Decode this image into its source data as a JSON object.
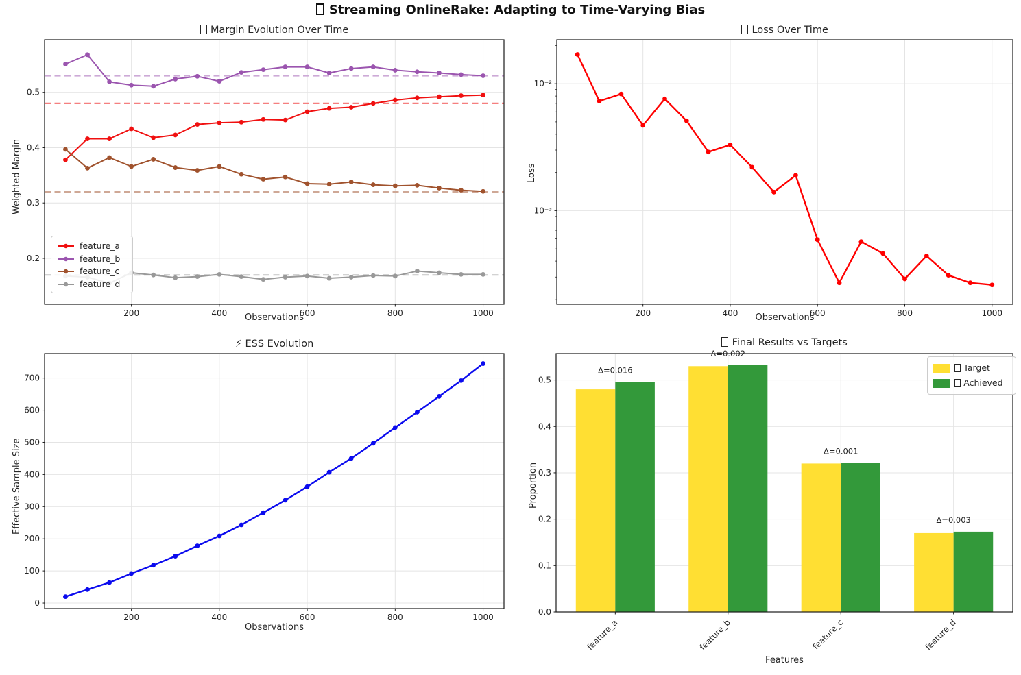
{
  "figure": {
    "title": "Streaming OnlineRake: Adapting to Time-Varying Bias",
    "title_icon": "missing-glyph"
  },
  "chart_data": [
    {
      "type": "line",
      "title": "Margin Evolution Over Time",
      "title_icon": "missing-glyph",
      "xlabel": "Observations",
      "ylabel": "Weighted Margin",
      "x": [
        50,
        100,
        150,
        200,
        250,
        300,
        350,
        400,
        450,
        500,
        550,
        600,
        650,
        700,
        750,
        800,
        850,
        900,
        950,
        1000
      ],
      "series": [
        {
          "name": "feature_a",
          "color": "#f01010",
          "target": 0.48,
          "target_color": "#f57f7f",
          "values": [
            0.378,
            0.416,
            0.416,
            0.434,
            0.418,
            0.423,
            0.442,
            0.445,
            0.446,
            0.451,
            0.45,
            0.465,
            0.471,
            0.473,
            0.48,
            0.486,
            0.49,
            0.492,
            0.494,
            0.495
          ]
        },
        {
          "name": "feature_b",
          "color": "#9b55af",
          "target": 0.53,
          "target_color": "#cdaad7",
          "values": [
            0.551,
            0.568,
            0.519,
            0.513,
            0.511,
            0.524,
            0.529,
            0.52,
            0.536,
            0.541,
            0.546,
            0.546,
            0.535,
            0.543,
            0.546,
            0.54,
            0.537,
            0.535,
            0.532,
            0.53
          ]
        },
        {
          "name": "feature_c",
          "color": "#a0522d",
          "target": 0.32,
          "target_color": "#cfa896",
          "values": [
            0.397,
            0.363,
            0.382,
            0.366,
            0.379,
            0.364,
            0.359,
            0.366,
            0.352,
            0.343,
            0.347,
            0.335,
            0.334,
            0.338,
            0.333,
            0.331,
            0.332,
            0.327,
            0.323,
            0.321
          ]
        },
        {
          "name": "feature_d",
          "color": "#999999",
          "target": 0.17,
          "target_color": "#cccccc",
          "values": [
            0.168,
            0.166,
            0.155,
            0.174,
            0.17,
            0.165,
            0.167,
            0.171,
            0.167,
            0.162,
            0.166,
            0.168,
            0.164,
            0.166,
            0.169,
            0.168,
            0.177,
            0.174,
            0.171,
            0.171
          ]
        }
      ],
      "xticks": [
        200,
        400,
        600,
        800,
        1000
      ],
      "xtick_labels": [
        "200",
        "400",
        "600",
        "800",
        "1000"
      ],
      "yticks": [
        0.2,
        0.3,
        0.4,
        0.5
      ],
      "ytick_labels": [
        "0.2",
        "0.3",
        "0.4",
        "0.5"
      ],
      "xlim": [
        2.5,
        1047.5
      ],
      "ylim": [
        0.117,
        0.595
      ],
      "grid": true,
      "legend_position": "lower-left",
      "line_width": 2
    },
    {
      "type": "line",
      "title": "Loss Over Time",
      "title_icon": "missing-glyph",
      "xlabel": "Observations",
      "ylabel": "Loss",
      "x": [
        50,
        100,
        150,
        200,
        250,
        300,
        350,
        400,
        450,
        500,
        550,
        600,
        650,
        700,
        750,
        800,
        850,
        900,
        950,
        1000
      ],
      "series": [
        {
          "name": "loss",
          "color": "#ff0000",
          "values": [
            0.017,
            0.0073,
            0.0083,
            0.0047,
            0.0076,
            0.0051,
            0.0029,
            0.0033,
            0.0022,
            0.0014,
            0.0019,
            0.00059,
            0.00027,
            0.00057,
            0.00046,
            0.00029,
            0.00044,
            0.00031,
            0.00027,
            0.00026
          ]
        }
      ],
      "xticks": [
        200,
        400,
        600,
        800,
        1000
      ],
      "xtick_labels": [
        "200",
        "400",
        "600",
        "800",
        "1000"
      ],
      "yticks": [
        0.01,
        0.001
      ],
      "ytick_labels": [
        "10⁻²",
        "10⁻³"
      ],
      "xlim": [
        2.5,
        1047.5
      ],
      "ylim": [
        0.000183,
        0.0222
      ],
      "yscale": "log",
      "grid": true,
      "line_width": 2.4
    },
    {
      "type": "line",
      "title": "ESS Evolution",
      "icon_glyph": "⚡",
      "xlabel": "Observations",
      "ylabel": "Effective Sample Size",
      "x": [
        50,
        100,
        150,
        200,
        250,
        300,
        350,
        400,
        450,
        500,
        550,
        600,
        650,
        700,
        750,
        800,
        850,
        900,
        950,
        1000
      ],
      "series": [
        {
          "name": "ess",
          "color": "#0b0bee",
          "values": [
            20,
            42,
            64,
            92,
            118,
            146,
            178,
            209,
            243,
            281,
            320,
            362,
            407,
            450,
            497,
            546,
            594,
            643,
            692,
            745
          ]
        }
      ],
      "xticks": [
        200,
        400,
        600,
        800,
        1000
      ],
      "xtick_labels": [
        "200",
        "400",
        "600",
        "800",
        "1000"
      ],
      "yticks": [
        0,
        100,
        200,
        300,
        400,
        500,
        600,
        700
      ],
      "ytick_labels": [
        "0",
        "100",
        "200",
        "300",
        "400",
        "500",
        "600",
        "700"
      ],
      "xlim": [
        2.5,
        1047.5
      ],
      "ylim": [
        -17,
        776
      ],
      "grid": true,
      "line_width": 2.4
    },
    {
      "type": "bar",
      "title": "Final Results vs Targets",
      "title_icon": "missing-glyph",
      "xlabel": "Features",
      "ylabel": "Proportion",
      "categories": [
        "feature_a",
        "feature_b",
        "feature_c",
        "feature_d"
      ],
      "series": [
        {
          "name": "Target",
          "icon": "missing-glyph",
          "color": "#ffdf33",
          "values": [
            0.48,
            0.53,
            0.32,
            0.17
          ]
        },
        {
          "name": "Achieved",
          "icon": "missing-glyph",
          "color": "#33993a",
          "values": [
            0.496,
            0.532,
            0.321,
            0.173
          ]
        }
      ],
      "annotations": [
        "Δ=0.016",
        "Δ=0.002",
        "Δ=0.001",
        "Δ=0.003"
      ],
      "annotation_color": "#ff0000",
      "yticks": [
        0.0,
        0.1,
        0.2,
        0.3,
        0.4,
        0.5
      ],
      "ytick_labels": [
        "0.0",
        "0.1",
        "0.2",
        "0.3",
        "0.4",
        "0.5"
      ],
      "xlim": [
        -0.525,
        3.525
      ],
      "ylim": [
        0,
        0.557
      ],
      "bar_width": 0.35,
      "grid": true,
      "legend_position": "upper-right"
    }
  ]
}
